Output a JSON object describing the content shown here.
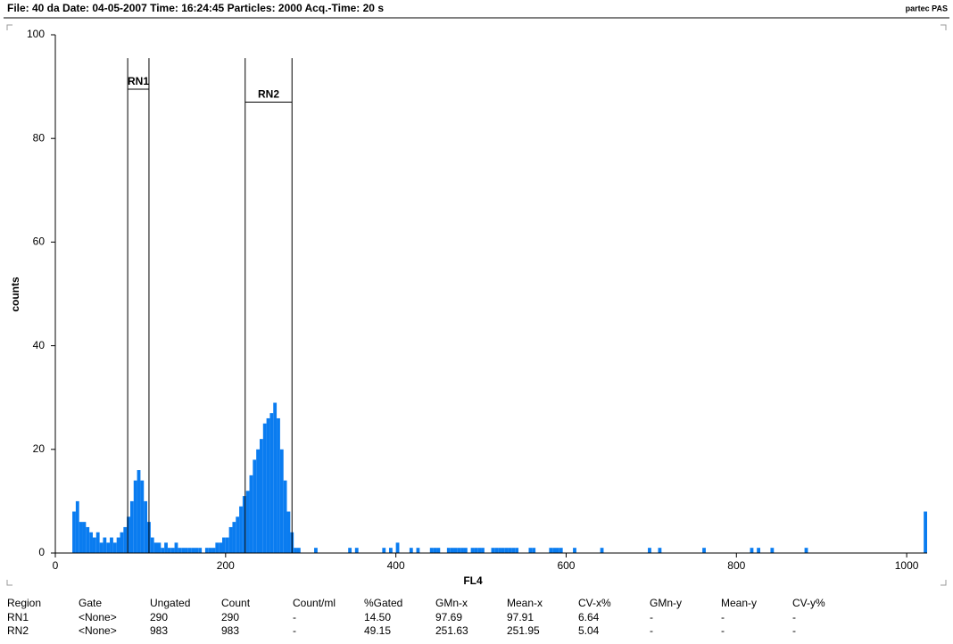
{
  "header": {
    "title": "File: 40 da   Date: 04-05-2007   Time: 16:24:45   Particles: 2000   Acq.-Time: 20 s",
    "brand": "partec PAS"
  },
  "chart_data": {
    "type": "histogram",
    "x_label": "FL4",
    "y_label": "counts",
    "color": "#0a7cf0",
    "xlim": [
      0,
      1024
    ],
    "ylim": [
      0,
      100
    ],
    "xticks": [
      0,
      200,
      400,
      600,
      800,
      1000
    ],
    "yticks": [
      0,
      20,
      40,
      60,
      80,
      100
    ],
    "bins": [
      0,
      4,
      8,
      12,
      16,
      20,
      24,
      28,
      32,
      36,
      40,
      44,
      48,
      52,
      56,
      60,
      64,
      68,
      72,
      76,
      80,
      84,
      88,
      92,
      96,
      100,
      104,
      108,
      112,
      116,
      120,
      124,
      128,
      132,
      136,
      140,
      144,
      148,
      152,
      156,
      160,
      164,
      168,
      172,
      176,
      180,
      184,
      188,
      192,
      196,
      200,
      204,
      208,
      212,
      216,
      220,
      224,
      228,
      232,
      236,
      240,
      244,
      248,
      252,
      256,
      260,
      264,
      268,
      272,
      276,
      280,
      284,
      288,
      292,
      296,
      300,
      304,
      308,
      312,
      316,
      320,
      324,
      328,
      332,
      336,
      340,
      344,
      348,
      352,
      356,
      360,
      364,
      368,
      372,
      376,
      380,
      384,
      388,
      392,
      396,
      400,
      404,
      408,
      412,
      416,
      420,
      424,
      428,
      432,
      436,
      440,
      444,
      448,
      452,
      456,
      460,
      464,
      468,
      472,
      476,
      480,
      484,
      488,
      492,
      496,
      500,
      504,
      508,
      512,
      516,
      520,
      524,
      528,
      532,
      536,
      540,
      544,
      548,
      552,
      556,
      560,
      564,
      568,
      572,
      576,
      580,
      584,
      588,
      592,
      596,
      600,
      604,
      608,
      612,
      616,
      620,
      624,
      628,
      632,
      636,
      640,
      644,
      648,
      652,
      656,
      660,
      664,
      668,
      672,
      676,
      680,
      684,
      688,
      692,
      696,
      700,
      704,
      708,
      712,
      716,
      720,
      724,
      728,
      732,
      736,
      740,
      744,
      748,
      752,
      756,
      760,
      764,
      768,
      772,
      776,
      780,
      784,
      788,
      792,
      796,
      800,
      804,
      808,
      812,
      816,
      820,
      824,
      828,
      832,
      836,
      840,
      844,
      848,
      852,
      856,
      860,
      864,
      868,
      872,
      876,
      880,
      884,
      888,
      892,
      896,
      900,
      904,
      908,
      912,
      916,
      920,
      924,
      928,
      932,
      936,
      940,
      944,
      948,
      952,
      956,
      960,
      964,
      968,
      972,
      976,
      980,
      984,
      988,
      992,
      996,
      1000,
      1004,
      1008,
      1012,
      1016,
      1020,
      1024
    ],
    "counts": [
      0,
      0,
      0,
      0,
      0,
      8,
      10,
      6,
      6,
      5,
      4,
      3,
      4,
      2,
      3,
      2,
      3,
      2,
      3,
      4,
      5,
      7,
      10,
      14,
      16,
      14,
      10,
      6,
      3,
      2,
      2,
      1,
      2,
      1,
      1,
      2,
      1,
      1,
      1,
      1,
      1,
      1,
      1,
      0,
      1,
      1,
      1,
      2,
      2,
      3,
      3,
      5,
      6,
      7,
      9,
      11,
      12,
      15,
      18,
      20,
      22,
      25,
      26,
      27,
      29,
      26,
      20,
      14,
      8,
      4,
      1,
      1,
      0,
      0,
      0,
      0,
      1,
      0,
      0,
      0,
      0,
      0,
      0,
      0,
      0,
      0,
      1,
      0,
      1,
      0,
      0,
      0,
      0,
      0,
      0,
      0,
      1,
      0,
      1,
      0,
      2,
      0,
      0,
      0,
      1,
      0,
      1,
      0,
      0,
      0,
      1,
      1,
      1,
      0,
      0,
      1,
      1,
      1,
      1,
      1,
      1,
      0,
      1,
      1,
      1,
      1,
      0,
      0,
      1,
      1,
      1,
      1,
      1,
      1,
      1,
      1,
      0,
      0,
      0,
      1,
      1,
      0,
      0,
      0,
      0,
      1,
      1,
      1,
      1,
      0,
      0,
      0,
      1,
      0,
      0,
      0,
      0,
      0,
      0,
      0,
      1,
      0,
      0,
      0,
      0,
      0,
      0,
      0,
      0,
      0,
      0,
      0,
      0,
      0,
      1,
      0,
      0,
      1,
      0,
      0,
      0,
      0,
      0,
      0,
      0,
      0,
      0,
      0,
      0,
      0,
      1,
      0,
      0,
      0,
      0,
      0,
      0,
      0,
      0,
      0,
      0,
      0,
      0,
      0,
      1,
      0,
      1,
      0,
      0,
      0,
      1,
      0,
      0,
      0,
      0,
      0,
      0,
      0,
      0,
      0,
      1,
      0,
      0,
      0,
      0,
      0,
      0,
      0,
      0,
      0,
      0,
      0,
      0,
      0,
      0,
      0,
      0,
      0,
      0,
      0,
      0,
      0,
      0,
      0,
      0,
      0,
      0,
      0,
      0,
      0,
      0,
      0,
      0,
      0,
      0,
      8
    ],
    "regions": [
      {
        "name": "RN1",
        "x": [
          85,
          110
        ],
        "y": 89.5,
        "top": 95.5
      },
      {
        "name": "RN2",
        "x": [
          223,
          278
        ],
        "y": 87,
        "top": 95.5
      }
    ]
  },
  "table": {
    "header": [
      "Region",
      "Gate",
      "Ungated",
      "Count",
      "Count/ml",
      "%Gated",
      "GMn-x",
      "Mean-x",
      "CV-x%",
      "GMn-y",
      "Mean-y",
      "CV-y%"
    ],
    "rows": [
      [
        "RN1",
        "<None>",
        "290",
        "290",
        "-",
        "14.50",
        "97.69",
        "97.91",
        "6.64",
        "-",
        "-",
        "-"
      ],
      [
        "RN2",
        "<None>",
        "983",
        "983",
        "-",
        "49.15",
        "251.63",
        "251.95",
        "5.04",
        "-",
        "-",
        "-"
      ]
    ]
  }
}
